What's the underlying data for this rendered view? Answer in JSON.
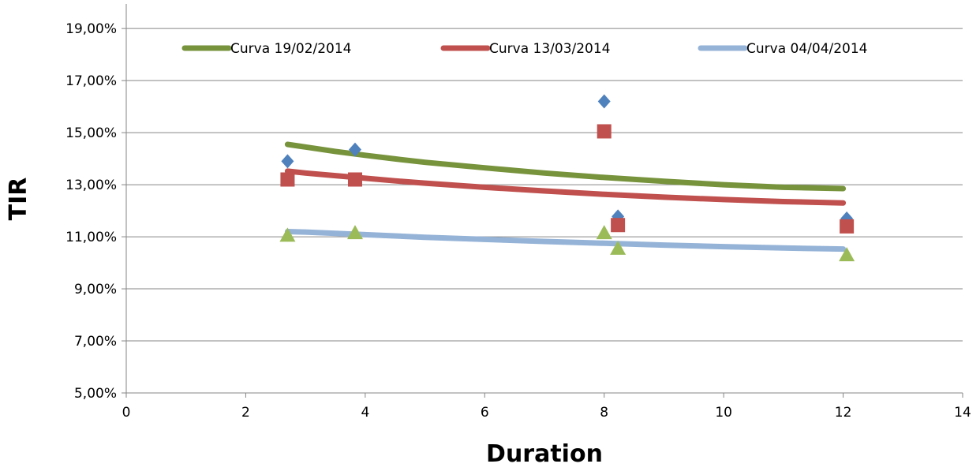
{
  "chart_data": {
    "type": "scatter",
    "title": "",
    "xlabel": "Duration",
    "ylabel": "TIR",
    "xlim": [
      0,
      14
    ],
    "ylim": [
      0.05,
      0.19
    ],
    "x_ticks": [
      0,
      2,
      4,
      6,
      8,
      10,
      12,
      14
    ],
    "y_ticks": [
      0.05,
      0.07,
      0.09,
      0.11,
      0.13,
      0.15,
      0.17,
      0.19
    ],
    "x_tick_labels": [
      "0",
      "2",
      "4",
      "6",
      "8",
      "10",
      "12",
      "14"
    ],
    "y_tick_labels": [
      "5,00%",
      "7,00%",
      "9,00%",
      "11,00%",
      "13,00%",
      "15,00%",
      "17,00%",
      "19,00%"
    ],
    "grid": "horizontal",
    "legend_position": "top",
    "curves": [
      {
        "name": "Curva 19/02/2014",
        "color": "#77933C",
        "x": [
          2.7,
          3.0,
          3.5,
          4.0,
          4.5,
          5.0,
          6.0,
          7.0,
          8.0,
          9.0,
          10.0,
          11.0,
          12.0
        ],
        "y": [
          0.1455,
          0.1445,
          0.1428,
          0.1413,
          0.1399,
          0.1386,
          0.1365,
          0.1345,
          0.1328,
          0.1313,
          0.13,
          0.129,
          0.1285
        ]
      },
      {
        "name": "Curva 13/03/2014",
        "color": "#C0504D",
        "x": [
          2.7,
          3.0,
          3.5,
          4.0,
          4.5,
          5.0,
          6.0,
          7.0,
          8.0,
          9.0,
          10.0,
          11.0,
          12.0
        ],
        "y": [
          0.1352,
          0.1345,
          0.1335,
          0.1325,
          0.1315,
          0.1306,
          0.129,
          0.1276,
          0.1263,
          0.1252,
          0.1243,
          0.1235,
          0.123
        ]
      },
      {
        "name": "Curva 04/04/2014",
        "color": "#95B3D7",
        "x": [
          2.7,
          3.0,
          3.5,
          4.0,
          5.0,
          6.0,
          7.0,
          8.0,
          9.0,
          10.0,
          11.0,
          12.0
        ],
        "y": [
          0.112,
          0.1118,
          0.1113,
          0.1108,
          0.1098,
          0.109,
          0.1082,
          0.1075,
          0.1068,
          0.1062,
          0.1057,
          0.1053
        ]
      }
    ],
    "point_series": [
      {
        "marker": "diamond",
        "color": "#4F81BD",
        "x": [
          2.7,
          3.83,
          8.0,
          8.23,
          12.06
        ],
        "y": [
          0.139,
          0.1435,
          0.162,
          0.1178,
          0.117
        ]
      },
      {
        "marker": "square",
        "color": "#C0504D",
        "x": [
          2.7,
          3.83,
          8.0,
          8.23,
          12.06
        ],
        "y": [
          0.132,
          0.132,
          0.1505,
          0.1145,
          0.114
        ]
      },
      {
        "marker": "triangle",
        "color": "#9BBB59",
        "x": [
          2.7,
          3.83,
          8.0,
          8.23,
          12.06
        ],
        "y": [
          0.1105,
          0.1115,
          0.1115,
          0.1055,
          0.103
        ]
      }
    ]
  }
}
